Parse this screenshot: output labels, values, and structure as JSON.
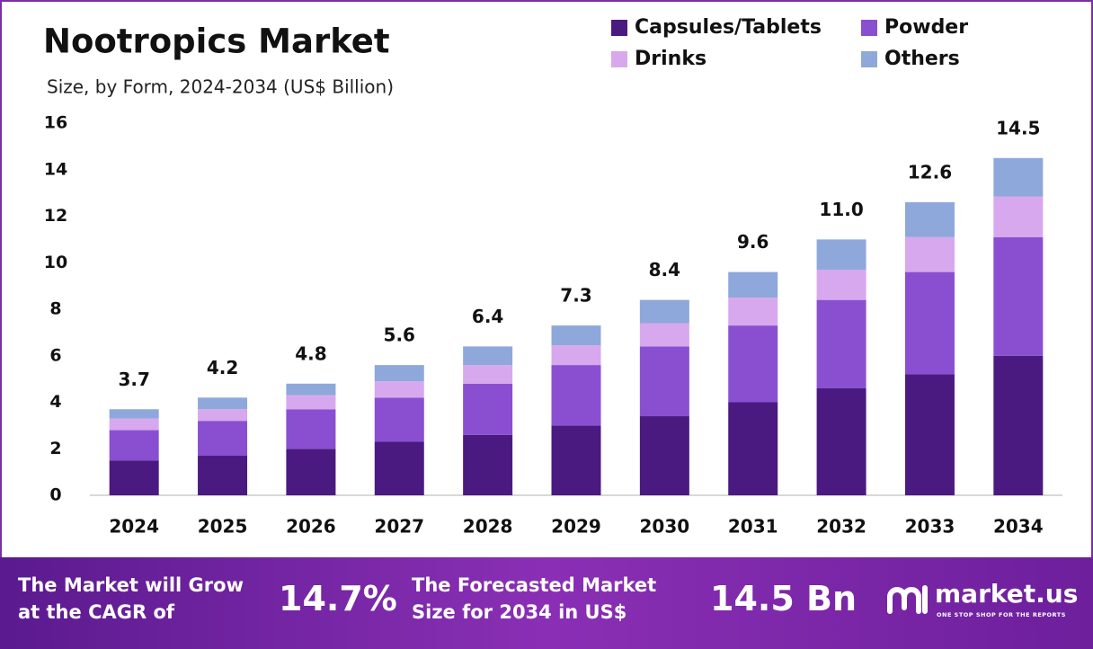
{
  "chart_data": {
    "type": "stacked-bar",
    "title": "Nootropics Market",
    "subtitle": "Size, by Form, 2024-2034 (US$ Billion)",
    "categories": [
      "2024",
      "2025",
      "2026",
      "2027",
      "2028",
      "2029",
      "2030",
      "2031",
      "2032",
      "2033",
      "2034"
    ],
    "series": [
      {
        "name": "Capsules/Tablets",
        "color": "#4b1a80",
        "values": [
          1.5,
          1.7,
          2.0,
          2.3,
          2.6,
          3.0,
          3.4,
          4.0,
          4.6,
          5.2,
          6.0
        ]
      },
      {
        "name": "Powder",
        "color": "#8a4fd0",
        "values": [
          1.3,
          1.5,
          1.7,
          1.9,
          2.2,
          2.6,
          3.0,
          3.3,
          3.8,
          4.4,
          5.1
        ]
      },
      {
        "name": "Drinks",
        "color": "#d7a8ee",
        "values": [
          0.5,
          0.5,
          0.6,
          0.7,
          0.8,
          0.85,
          1.0,
          1.2,
          1.3,
          1.5,
          1.75
        ]
      },
      {
        "name": "Others",
        "color": "#8ea8dc",
        "values": [
          0.4,
          0.5,
          0.5,
          0.7,
          0.8,
          0.85,
          1.0,
          1.1,
          1.3,
          1.5,
          1.65
        ]
      }
    ],
    "totals": {
      "values": [
        3.7,
        4.2,
        4.8,
        5.6,
        6.4,
        7.3,
        8.4,
        9.6,
        11.0,
        12.6,
        14.5
      ],
      "value_labels": [
        "3.7",
        "4.2",
        "4.8",
        "5.6",
        "6.4",
        "7.3",
        "8.4",
        "9.6",
        "11.0",
        "12.6",
        "14.5"
      ]
    },
    "ylim": [
      0,
      16
    ],
    "yticks": [
      0,
      2,
      4,
      6,
      8,
      10,
      12,
      14,
      16
    ],
    "grid": false
  },
  "footer": {
    "cagr_text": "The Market will Grow at the CAGR of",
    "cagr_value": "14.7%",
    "forecast_text": "The Forecasted Market Size for 2034 in US$",
    "forecast_value": "14.5 Bn",
    "brand": "market.us",
    "tagline": "ONE STOP SHOP FOR THE REPORTS"
  }
}
